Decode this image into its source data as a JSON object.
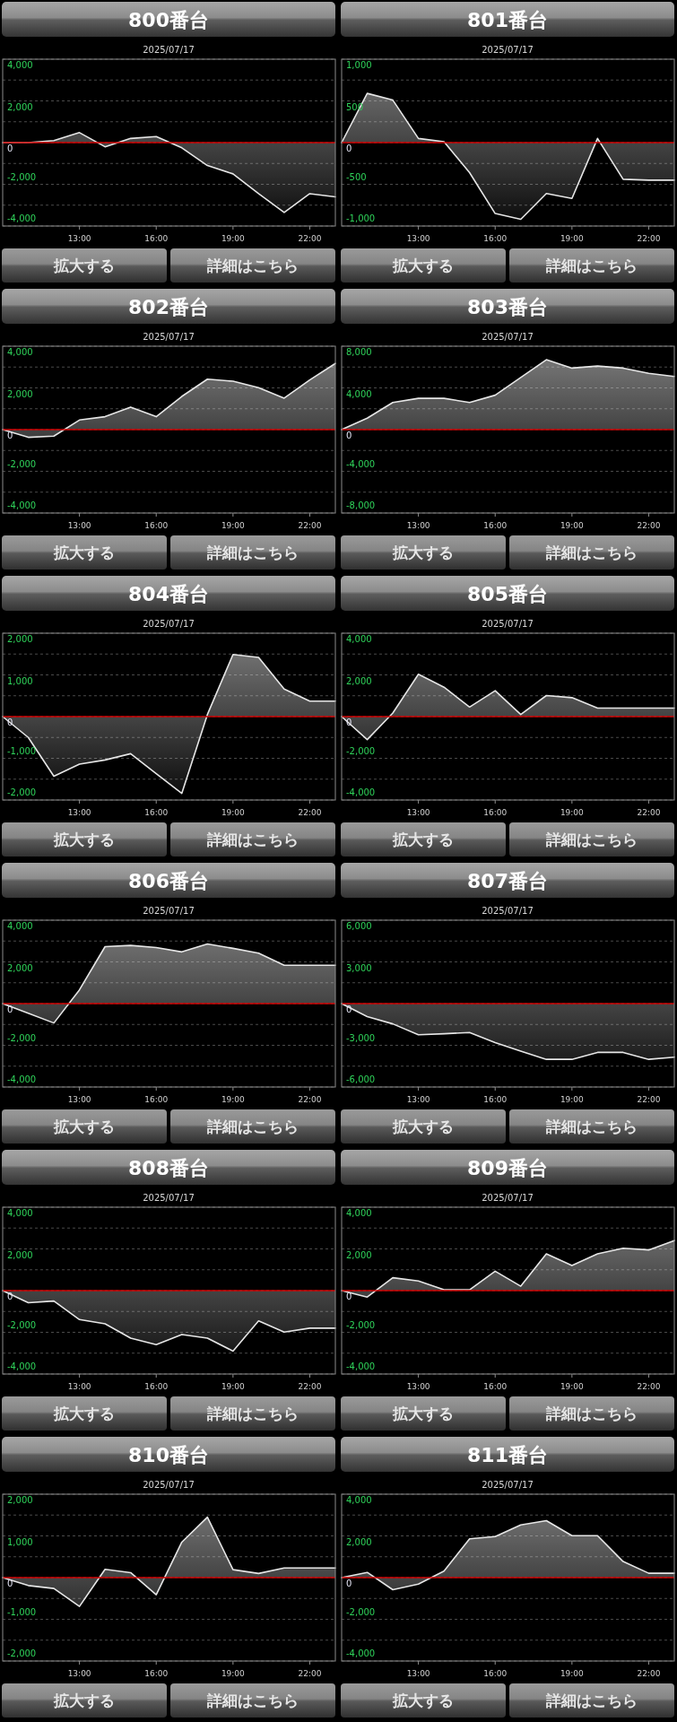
{
  "chart_data": [
    {
      "type": "area",
      "title": "800番台",
      "subtitle": "2025/07/17",
      "x": [
        10,
        11,
        12,
        13,
        14,
        15,
        16,
        17,
        18,
        19,
        20,
        21,
        22,
        23
      ],
      "values": [
        0,
        0,
        100,
        480,
        -200,
        200,
        290,
        -250,
        -1100,
        -1500,
        -2450,
        -3350,
        -2450,
        -2600
      ],
      "color": "#e6e6e6",
      "xlim": [
        10,
        23
      ],
      "xticks": [
        {
          "value": 13,
          "label": "13:00"
        },
        {
          "value": 16,
          "label": "16:00"
        },
        {
          "value": 19,
          "label": "19:00"
        },
        {
          "value": 22,
          "label": "22:00"
        }
      ],
      "ylim": [
        -4000,
        4000
      ],
      "yticks": [
        {
          "value": -4000,
          "label": "-4,000"
        },
        {
          "value": -3000,
          "label": null
        },
        {
          "value": -2000,
          "label": "-2,000"
        },
        {
          "value": -1000,
          "label": null
        },
        0,
        {
          "value": 1000,
          "label": null
        },
        {
          "value": 2000,
          "label": "2,000"
        },
        {
          "value": 3000,
          "label": null
        },
        {
          "value": 4000,
          "label": "4,000"
        }
      ],
      "grid": "y",
      "ref_lines": [
        {
          "axis": "y",
          "value": 0,
          "color": "#cc0000"
        }
      ],
      "annotations": [
        "拡大する",
        "詳細はこちら"
      ]
    },
    {
      "type": "area",
      "title": "801番台",
      "subtitle": "2025/07/17",
      "x": [
        10,
        11,
        12,
        13,
        14,
        15,
        16,
        17,
        18,
        19,
        20,
        21,
        22,
        23
      ],
      "values": [
        0,
        590,
        510,
        50,
        10,
        -360,
        -850,
        -920,
        -610,
        -670,
        50,
        -440,
        -450,
        -450
      ],
      "color": "#e6e6e6",
      "xlim": [
        10,
        23
      ],
      "xticks": [
        {
          "value": 13,
          "label": "13:00"
        },
        {
          "value": 16,
          "label": "16:00"
        },
        {
          "value": 19,
          "label": "19:00"
        },
        {
          "value": 22,
          "label": "22:00"
        }
      ],
      "ylim": [
        -1000,
        1000
      ],
      "yticks": [
        {
          "value": -1000,
          "label": "-1,000"
        },
        {
          "value": -750,
          "label": null
        },
        -500,
        {
          "value": -250,
          "label": null
        },
        0,
        {
          "value": 250,
          "label": null
        },
        500,
        {
          "value": 750,
          "label": null
        },
        {
          "value": 1000,
          "label": "1,000"
        }
      ],
      "grid": "y",
      "ref_lines": [
        {
          "axis": "y",
          "value": 0,
          "color": "#cc0000"
        }
      ],
      "annotations": [
        "拡大する",
        "詳細はこちら"
      ]
    },
    {
      "type": "area",
      "title": "802番台",
      "subtitle": "2025/07/17",
      "x": [
        10,
        11,
        12,
        13,
        14,
        15,
        16,
        17,
        18,
        19,
        20,
        21,
        22,
        23
      ],
      "values": [
        0,
        -370,
        -310,
        460,
        620,
        1080,
        620,
        1590,
        2420,
        2320,
        2010,
        1510,
        2380,
        3170
      ],
      "color": "#e6e6e6",
      "xlim": [
        10,
        23
      ],
      "xticks": [
        {
          "value": 13,
          "label": "13:00"
        },
        {
          "value": 16,
          "label": "16:00"
        },
        {
          "value": 19,
          "label": "19:00"
        },
        {
          "value": 22,
          "label": "22:00"
        }
      ],
      "ylim": [
        -4000,
        4000
      ],
      "yticks": [
        {
          "value": -4000,
          "label": "-4,000"
        },
        {
          "value": -3000,
          "label": null
        },
        {
          "value": -2000,
          "label": "-2,000"
        },
        {
          "value": -1000,
          "label": null
        },
        0,
        {
          "value": 1000,
          "label": null
        },
        {
          "value": 2000,
          "label": "2,000"
        },
        {
          "value": 3000,
          "label": null
        },
        {
          "value": 4000,
          "label": "4,000"
        }
      ],
      "grid": "y",
      "ref_lines": [
        {
          "axis": "y",
          "value": 0,
          "color": "#cc0000"
        }
      ],
      "annotations": [
        "拡大する",
        "詳細はこちら"
      ]
    },
    {
      "type": "area",
      "title": "803番台",
      "subtitle": "2025/07/17",
      "x": [
        10,
        11,
        12,
        13,
        14,
        15,
        16,
        17,
        18,
        19,
        20,
        21,
        22,
        23
      ],
      "values": [
        0,
        1100,
        2600,
        3000,
        3000,
        2600,
        3300,
        5000,
        6700,
        5900,
        6100,
        5900,
        5400,
        5100
      ],
      "color": "#e6e6e6",
      "xlim": [
        10,
        23
      ],
      "xticks": [
        {
          "value": 13,
          "label": "13:00"
        },
        {
          "value": 16,
          "label": "16:00"
        },
        {
          "value": 19,
          "label": "19:00"
        },
        {
          "value": 22,
          "label": "22:00"
        }
      ],
      "ylim": [
        -8000,
        8000
      ],
      "yticks": [
        {
          "value": -8000,
          "label": "-8,000"
        },
        {
          "value": -6000,
          "label": null
        },
        {
          "value": -4000,
          "label": "-4,000"
        },
        {
          "value": -2000,
          "label": null
        },
        0,
        {
          "value": 2000,
          "label": null
        },
        {
          "value": 4000,
          "label": "4,000"
        },
        {
          "value": 6000,
          "label": null
        },
        {
          "value": 8000,
          "label": "8,000"
        }
      ],
      "grid": "y",
      "ref_lines": [
        {
          "axis": "y",
          "value": 0,
          "color": "#cc0000"
        }
      ],
      "annotations": [
        "拡大する",
        "詳細はこちら"
      ]
    },
    {
      "type": "area",
      "title": "804番台",
      "subtitle": "2025/07/17",
      "x": [
        10,
        11,
        12,
        13,
        14,
        15,
        16,
        17,
        18,
        19,
        20,
        21,
        22,
        23
      ],
      "values": [
        0,
        -500,
        -1430,
        -1140,
        -1040,
        -890,
        -1370,
        -1840,
        50,
        1490,
        1420,
        660,
        370,
        370
      ],
      "color": "#e6e6e6",
      "xlim": [
        10,
        23
      ],
      "xticks": [
        {
          "value": 13,
          "label": "13:00"
        },
        {
          "value": 16,
          "label": "16:00"
        },
        {
          "value": 19,
          "label": "19:00"
        },
        {
          "value": 22,
          "label": "22:00"
        }
      ],
      "ylim": [
        -2000,
        2000
      ],
      "yticks": [
        {
          "value": -2000,
          "label": "-2,000"
        },
        {
          "value": -1500,
          "label": null
        },
        {
          "value": -1000,
          "label": "-1,000"
        },
        {
          "value": -500,
          "label": null
        },
        0,
        {
          "value": 500,
          "label": null
        },
        {
          "value": 1000,
          "label": "1,000"
        },
        {
          "value": 1500,
          "label": null
        },
        {
          "value": 2000,
          "label": "2,000"
        }
      ],
      "grid": "y",
      "ref_lines": [
        {
          "axis": "y",
          "value": 0,
          "color": "#cc0000"
        }
      ],
      "annotations": [
        "拡大する",
        "詳細はこちら"
      ]
    },
    {
      "type": "area",
      "title": "805番台",
      "subtitle": "2025/07/17",
      "x": [
        10,
        11,
        12,
        13,
        14,
        15,
        16,
        17,
        18,
        19,
        20,
        21,
        22,
        23
      ],
      "values": [
        0,
        -1100,
        170,
        2030,
        1410,
        460,
        1240,
        100,
        1010,
        910,
        410,
        410,
        410,
        410
      ],
      "color": "#e6e6e6",
      "xlim": [
        10,
        23
      ],
      "xticks": [
        {
          "value": 13,
          "label": "13:00"
        },
        {
          "value": 16,
          "label": "16:00"
        },
        {
          "value": 19,
          "label": "19:00"
        },
        {
          "value": 22,
          "label": "22:00"
        }
      ],
      "ylim": [
        -4000,
        4000
      ],
      "yticks": [
        {
          "value": -4000,
          "label": "-4,000"
        },
        {
          "value": -3000,
          "label": null
        },
        {
          "value": -2000,
          "label": "-2,000"
        },
        {
          "value": -1000,
          "label": null
        },
        0,
        {
          "value": 1000,
          "label": null
        },
        {
          "value": 2000,
          "label": "2,000"
        },
        {
          "value": 3000,
          "label": null
        },
        {
          "value": 4000,
          "label": "4,000"
        }
      ],
      "grid": "y",
      "ref_lines": [
        {
          "axis": "y",
          "value": 0,
          "color": "#cc0000"
        }
      ],
      "annotations": [
        "拡大する",
        "詳細はこちら"
      ]
    },
    {
      "type": "area",
      "title": "806番台",
      "subtitle": "2025/07/17",
      "x": [
        10,
        11,
        12,
        13,
        14,
        15,
        16,
        17,
        18,
        19,
        20,
        21,
        22,
        23
      ],
      "values": [
        0,
        -460,
        -930,
        660,
        2730,
        2790,
        2690,
        2480,
        2860,
        2650,
        2420,
        1840,
        1840,
        1840
      ],
      "color": "#e6e6e6",
      "xlim": [
        10,
        23
      ],
      "xticks": [
        {
          "value": 13,
          "label": "13:00"
        },
        {
          "value": 16,
          "label": "16:00"
        },
        {
          "value": 19,
          "label": "19:00"
        },
        {
          "value": 22,
          "label": "22:00"
        }
      ],
      "ylim": [
        -4000,
        4000
      ],
      "yticks": [
        {
          "value": -4000,
          "label": "-4,000"
        },
        {
          "value": -3000,
          "label": null
        },
        {
          "value": -2000,
          "label": "-2,000"
        },
        {
          "value": -1000,
          "label": null
        },
        0,
        {
          "value": 1000,
          "label": null
        },
        {
          "value": 2000,
          "label": "2,000"
        },
        {
          "value": 3000,
          "label": null
        },
        {
          "value": 4000,
          "label": "4,000"
        }
      ],
      "grid": "y",
      "ref_lines": [
        {
          "axis": "y",
          "value": 0,
          "color": "#cc0000"
        }
      ],
      "annotations": [
        "拡大する",
        "詳細はこちら"
      ]
    },
    {
      "type": "area",
      "title": "807番台",
      "subtitle": "2025/07/17",
      "x": [
        10,
        11,
        12,
        13,
        14,
        15,
        16,
        17,
        18,
        19,
        20,
        21,
        22,
        23
      ],
      "values": [
        0,
        -930,
        -1460,
        -2240,
        -2170,
        -2080,
        -2800,
        -3420,
        -4010,
        -4010,
        -3510,
        -3510,
        -4010,
        -3850
      ],
      "color": "#e6e6e6",
      "xlim": [
        10,
        23
      ],
      "xticks": [
        {
          "value": 13,
          "label": "13:00"
        },
        {
          "value": 16,
          "label": "16:00"
        },
        {
          "value": 19,
          "label": "19:00"
        },
        {
          "value": 22,
          "label": "22:00"
        }
      ],
      "ylim": [
        -6000,
        6000
      ],
      "yticks": [
        {
          "value": -6000,
          "label": "-6,000"
        },
        {
          "value": -4500,
          "label": null
        },
        {
          "value": -3000,
          "label": "-3,000"
        },
        {
          "value": -1500,
          "label": null
        },
        0,
        {
          "value": 1500,
          "label": null
        },
        {
          "value": 3000,
          "label": "3,000"
        },
        {
          "value": 4500,
          "label": null
        },
        {
          "value": 6000,
          "label": "6,000"
        }
      ],
      "grid": "y",
      "ref_lines": [
        {
          "axis": "y",
          "value": 0,
          "color": "#cc0000"
        }
      ],
      "annotations": [
        "拡大する",
        "詳細はこちら"
      ]
    },
    {
      "type": "area",
      "title": "808番台",
      "subtitle": "2025/07/17",
      "x": [
        10,
        11,
        12,
        13,
        14,
        15,
        16,
        17,
        18,
        19,
        20,
        21,
        22,
        23
      ],
      "values": [
        0,
        -580,
        -500,
        -1390,
        -1590,
        -2280,
        -2590,
        -2110,
        -2280,
        -2900,
        -1450,
        -1990,
        -1800,
        -1800
      ],
      "color": "#e6e6e6",
      "xlim": [
        10,
        23
      ],
      "xticks": [
        {
          "value": 13,
          "label": "13:00"
        },
        {
          "value": 16,
          "label": "16:00"
        },
        {
          "value": 19,
          "label": "19:00"
        },
        {
          "value": 22,
          "label": "22:00"
        }
      ],
      "ylim": [
        -4000,
        4000
      ],
      "yticks": [
        {
          "value": -4000,
          "label": "-4,000"
        },
        {
          "value": -3000,
          "label": null
        },
        {
          "value": -2000,
          "label": "-2,000"
        },
        {
          "value": -1000,
          "label": null
        },
        0,
        {
          "value": 1000,
          "label": null
        },
        {
          "value": 2000,
          "label": "2,000"
        },
        {
          "value": 3000,
          "label": null
        },
        {
          "value": 4000,
          "label": "4,000"
        }
      ],
      "grid": "y",
      "ref_lines": [
        {
          "axis": "y",
          "value": 0,
          "color": "#cc0000"
        }
      ],
      "annotations": [
        "拡大する",
        "詳細はこちら"
      ]
    },
    {
      "type": "area",
      "title": "809番台",
      "subtitle": "2025/07/17",
      "x": [
        10,
        11,
        12,
        13,
        14,
        15,
        16,
        17,
        18,
        19,
        20,
        21,
        22,
        23
      ],
      "values": [
        0,
        -310,
        620,
        460,
        40,
        40,
        930,
        210,
        1760,
        1200,
        1760,
        2030,
        1950,
        2400
      ],
      "color": "#e6e6e6",
      "xlim": [
        10,
        23
      ],
      "xticks": [
        {
          "value": 13,
          "label": "13:00"
        },
        {
          "value": 16,
          "label": "16:00"
        },
        {
          "value": 19,
          "label": "19:00"
        },
        {
          "value": 22,
          "label": "22:00"
        }
      ],
      "ylim": [
        -4000,
        4000
      ],
      "yticks": [
        {
          "value": -4000,
          "label": "-4,000"
        },
        {
          "value": -3000,
          "label": null
        },
        {
          "value": -2000,
          "label": "-2,000"
        },
        {
          "value": -1000,
          "label": null
        },
        0,
        {
          "value": 1000,
          "label": null
        },
        {
          "value": 2000,
          "label": "2,000"
        },
        {
          "value": 3000,
          "label": null
        },
        {
          "value": 4000,
          "label": "4,000"
        }
      ],
      "grid": "y",
      "ref_lines": [
        {
          "axis": "y",
          "value": 0,
          "color": "#cc0000"
        }
      ],
      "annotations": [
        "拡大する",
        "詳細はこちら"
      ]
    },
    {
      "type": "area",
      "title": "810番台",
      "subtitle": "2025/07/17",
      "x": [
        10,
        11,
        12,
        13,
        14,
        15,
        16,
        17,
        18,
        19,
        20,
        21,
        22,
        23
      ],
      "values": [
        0,
        -190,
        -260,
        -690,
        200,
        120,
        -410,
        850,
        1450,
        190,
        100,
        230,
        230,
        230
      ],
      "color": "#e6e6e6",
      "xlim": [
        10,
        23
      ],
      "xticks": [
        {
          "value": 13,
          "label": "13:00"
        },
        {
          "value": 16,
          "label": "16:00"
        },
        {
          "value": 19,
          "label": "19:00"
        },
        {
          "value": 22,
          "label": "22:00"
        }
      ],
      "ylim": [
        -2000,
        2000
      ],
      "yticks": [
        {
          "value": -2000,
          "label": "-2,000"
        },
        {
          "value": -1500,
          "label": null
        },
        {
          "value": -1000,
          "label": "-1,000"
        },
        {
          "value": -500,
          "label": null
        },
        0,
        {
          "value": 500,
          "label": null
        },
        {
          "value": 1000,
          "label": "1,000"
        },
        {
          "value": 1500,
          "label": null
        },
        {
          "value": 2000,
          "label": "2,000"
        }
      ],
      "grid": "y",
      "ref_lines": [
        {
          "axis": "y",
          "value": 0,
          "color": "#cc0000"
        }
      ],
      "annotations": [
        "拡大する",
        "詳細はこちら"
      ]
    },
    {
      "type": "area",
      "title": "811番台",
      "subtitle": "2025/07/17",
      "x": [
        10,
        11,
        12,
        13,
        14,
        15,
        16,
        17,
        18,
        19,
        20,
        21,
        22,
        23
      ],
      "values": [
        0,
        250,
        -580,
        -310,
        310,
        1860,
        1970,
        2530,
        2730,
        2010,
        2010,
        770,
        210,
        210
      ],
      "color": "#e6e6e6",
      "xlim": [
        10,
        23
      ],
      "xticks": [
        {
          "value": 13,
          "label": "13:00"
        },
        {
          "value": 16,
          "label": "16:00"
        },
        {
          "value": 19,
          "label": "19:00"
        },
        {
          "value": 22,
          "label": "22:00"
        }
      ],
      "ylim": [
        -4000,
        4000
      ],
      "yticks": [
        {
          "value": -4000,
          "label": "-4,000"
        },
        {
          "value": -3000,
          "label": null
        },
        {
          "value": -2000,
          "label": "-2,000"
        },
        {
          "value": -1000,
          "label": null
        },
        0,
        {
          "value": 1000,
          "label": null
        },
        {
          "value": 2000,
          "label": "2,000"
        },
        {
          "value": 3000,
          "label": null
        },
        {
          "value": 4000,
          "label": "4,000"
        }
      ],
      "grid": "y",
      "ref_lines": [
        {
          "axis": "y",
          "value": 0,
          "color": "#cc0000"
        }
      ],
      "annotations": [
        "拡大する",
        "詳細はこちら"
      ]
    }
  ]
}
